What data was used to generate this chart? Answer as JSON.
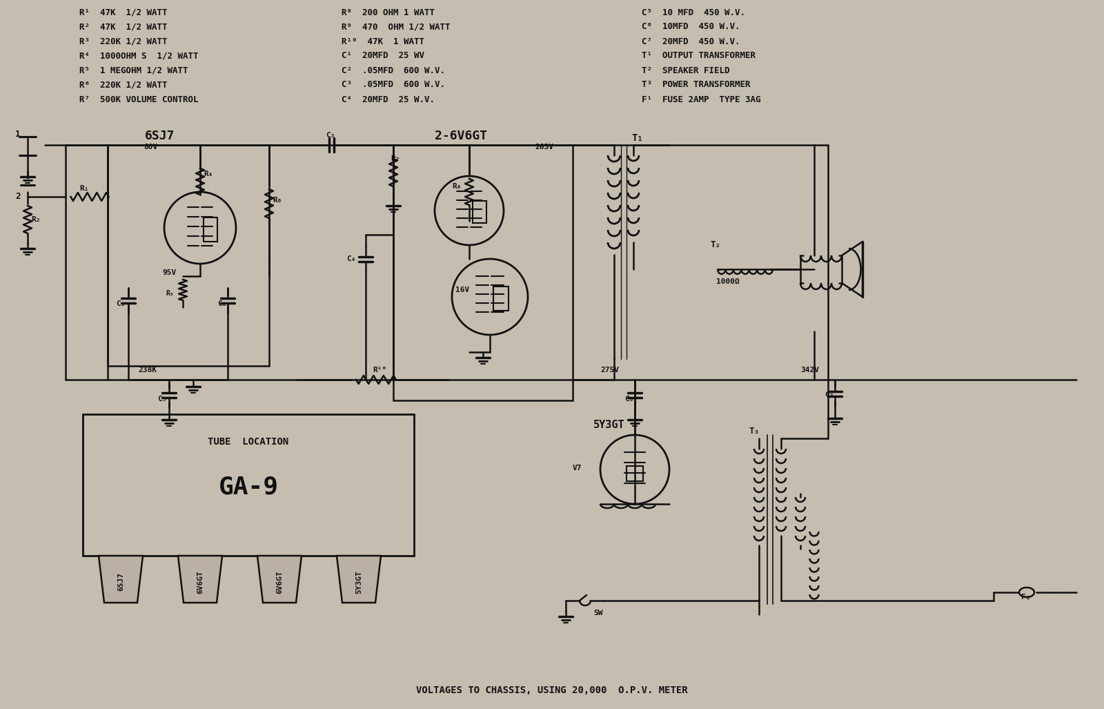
{
  "bg_color": "#c5bdb0",
  "fg_color": "#111111",
  "parts_list_col1": [
    "R¹  47K  1/2 WATT",
    "R²  47K  1/2 WATT",
    "R³  220K 1/2 WATT",
    "R⁴  1000OHM S  1/2 WATT",
    "R⁵  1 MEGOHM 1/2 WATT",
    "R⁶  220K 1/2 WATT",
    "R⁷  500K VOLUME CONTROL"
  ],
  "parts_list_col2": [
    "R⁸  200 OHM 1 WATT",
    "R⁹  470  OHM 1/2 WATT",
    "R¹⁰  47K  1 WATT",
    "C¹  20MFD  25 WV",
    "C²  .05MFD  600 W.V.",
    "C³  .05MFD  600 W.V.",
    "C⁴  20MFD  25 W.V."
  ],
  "parts_list_col3": [
    "C⁵  10 MFD  450 W.V.",
    "C⁶  10MFD  450 W.V.",
    "C⁷  20MFD  450 W.V.",
    "T¹  OUTPUT TRANSFORMER",
    "T²  SPEAKER FIELD",
    "T³  POWER TRANSFORMER",
    "F¹  FUSE 2AMP  TYPE 3AG"
  ],
  "tube_location_label": "TUBE  LOCATION",
  "tube_location_name": "GA-9",
  "tube_sockets": [
    "6SJ7",
    "6V6GT",
    "6V6GT",
    "5Y3GT"
  ],
  "bottom_text": "VOLTAGES TO CHASSIS, USING 20,000  O.P.V. METER"
}
